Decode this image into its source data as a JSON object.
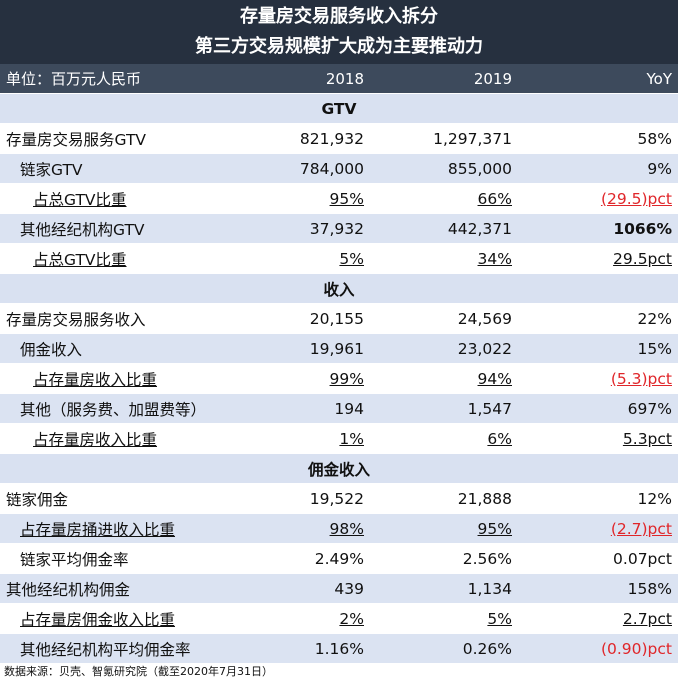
{
  "title": {
    "line1": "存量房交易服务收入拆分",
    "line2": "第三方交易规模扩大成为主要推动力"
  },
  "header": {
    "unit": "单位：百万元人民币",
    "col_2018": "2018",
    "col_2019": "2019",
    "col_yoy": "YoY"
  },
  "sections": {
    "gtv": "GTV",
    "revenue": "收入",
    "commission": "佣金收入"
  },
  "rows": [
    {
      "label": "存量房交易服务GTV",
      "v2018": "821,932",
      "v2019": "1,297,371",
      "yoy": "58%"
    },
    {
      "label": "链家GTV",
      "v2018": "784,000",
      "v2019": "855,000",
      "yoy": "9%"
    },
    {
      "label": "占总GTV比重",
      "v2018": "95%",
      "v2019": "66%",
      "yoy": "(29.5)pct"
    },
    {
      "label": "其他经纪机构GTV",
      "v2018": "37,932",
      "v2019": "442,371",
      "yoy": "1066%"
    },
    {
      "label": "占总GTV比重",
      "v2018": "5%",
      "v2019": "34%",
      "yoy": "29.5pct"
    },
    {
      "label": "存量房交易服务收入",
      "v2018": "20,155",
      "v2019": "24,569",
      "yoy": "22%"
    },
    {
      "label": "佣金收入",
      "v2018": "19,961",
      "v2019": "23,022",
      "yoy": "15%"
    },
    {
      "label": "占存量房收入比重",
      "v2018": "99%",
      "v2019": "94%",
      "yoy": "(5.3)pct"
    },
    {
      "label": "其他（服务费、加盟费等）",
      "v2018": "194",
      "v2019": "1,547",
      "yoy": "697%"
    },
    {
      "label": "占存量房收入比重",
      "v2018": "1%",
      "v2019": "6%",
      "yoy": "5.3pct"
    },
    {
      "label": "链家佣金",
      "v2018": "19,522",
      "v2019": "21,888",
      "yoy": "12%"
    },
    {
      "label": "占存量房捅进收入比重",
      "v2018": "98%",
      "v2019": "95%",
      "yoy": "(2.7)pct"
    },
    {
      "label": "链家平均佣金率",
      "v2018": "2.49%",
      "v2019": "2.56%",
      "yoy": "0.07pct"
    },
    {
      "label": "其他经纪机构佣金",
      "v2018": "439",
      "v2019": "1,134",
      "yoy": "158%"
    },
    {
      "label": "占存量房佣金收入比重",
      "v2018": "2%",
      "v2019": "5%",
      "yoy": "2.7pct"
    },
    {
      "label": "其他经纪机构平均佣金率",
      "v2018": "1.16%",
      "v2019": "0.26%",
      "yoy": "(0.90)pct"
    }
  ],
  "source": "数据来源：贝壳、智氪研究院（截至2020年7月31日）",
  "colors": {
    "title_bg": "#26303f",
    "header_bg": "#3d4a5c",
    "stripe": "#dbe3f2",
    "negative": "#e0262a"
  }
}
